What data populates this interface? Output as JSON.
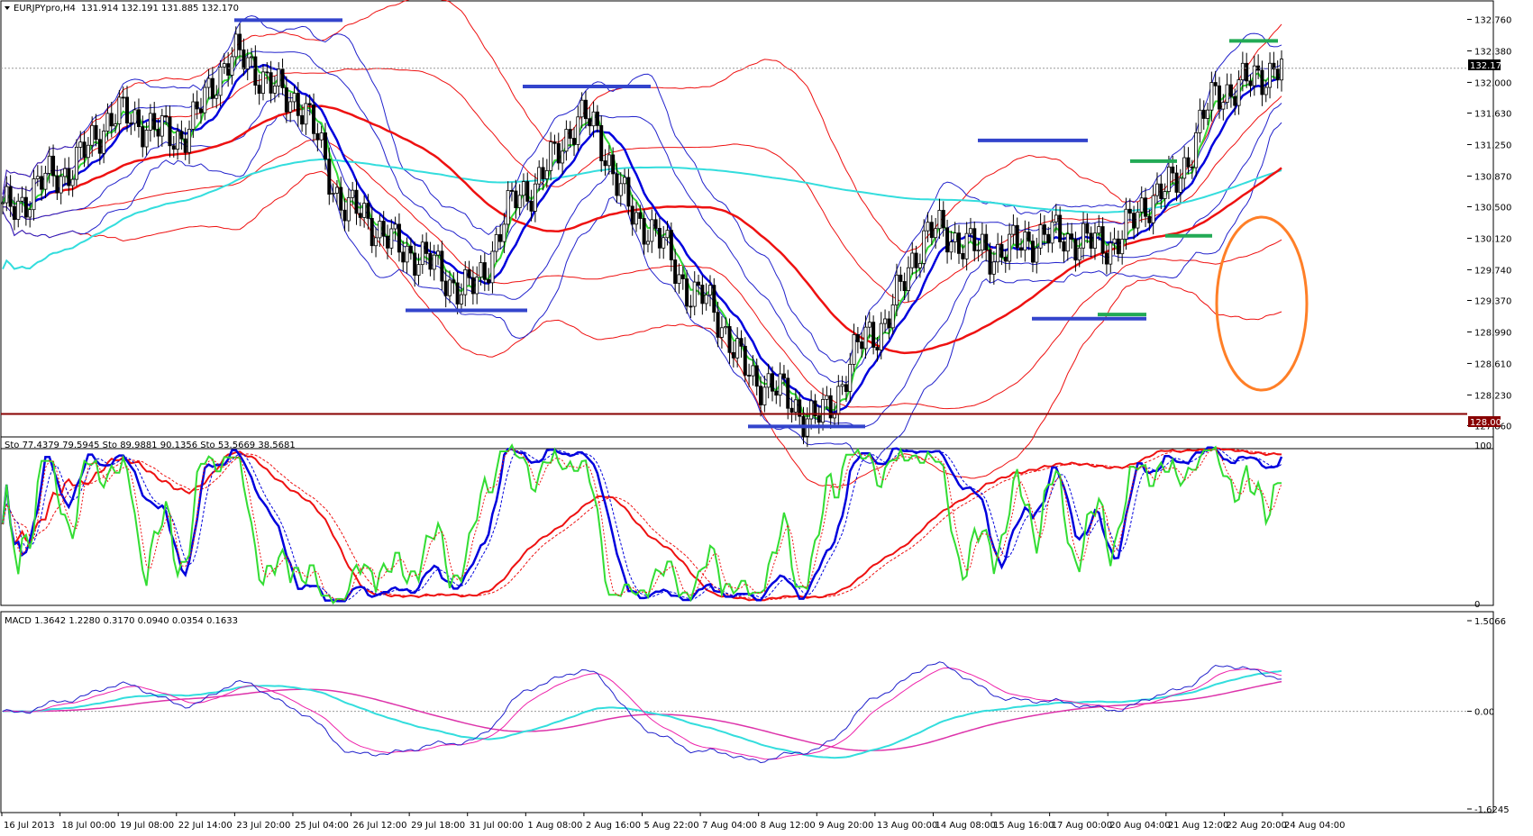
{
  "window": {
    "title": "EURJPYpro,H4",
    "quote": "131.914 132.191 131.885 132.170",
    "last_price_label": "132.170",
    "hline_label": "128.001"
  },
  "colors": {
    "background": "#ffffff",
    "bull_candle": "#ffffff",
    "bear_candle": "#000000",
    "ma_green": "#33dd33",
    "ma_blue": "#0000dd",
    "ma_red_thick": "#ee1111",
    "ma_cyan": "#33dddd",
    "bands_red": "#ee1111",
    "bands_blue": "#2222cc",
    "support_hline": "#880000",
    "swing_blue_marks": "#3344cc",
    "swing_green_marks": "#22aa55",
    "highlight_ellipse": "#ff7f27",
    "stoch_fast": "#33dd33",
    "stoch_mid": "#0000dd",
    "stoch_slow": "#ee1111",
    "macd_main_a": "#2222cc",
    "macd_signal_a": "#ee22aa",
    "macd_main_b": "#33dddd",
    "macd_signal_b": "#dd33aa"
  },
  "chart_data": [
    {
      "type": "candlestick",
      "panel": "price",
      "title": "EURJPYpro,H4",
      "symbol": "EURJPYpro",
      "timeframe": "H4",
      "ohlc_last": {
        "open": 131.914,
        "high": 132.191,
        "low": 131.885,
        "close": 132.17
      },
      "ylim": [
        127.8,
        132.95
      ],
      "y_ticks": [
        "132.760",
        "132.380",
        "132.000",
        "131.630",
        "131.250",
        "130.870",
        "130.500",
        "130.120",
        "129.740",
        "129.370",
        "128.990",
        "128.610",
        "128.230",
        "127.860"
      ],
      "x_tick_labels": [
        "16 Jul 2013",
        "18 Jul 00:00",
        "19 Jul 08:00",
        "22 Jul 14:00",
        "23 Jul 20:00",
        "25 Jul 04:00",
        "26 Jul 12:00",
        "29 Jul 18:00",
        "31 Jul 00:00",
        "1 Aug 08:00",
        "2 Aug 16:00",
        "5 Aug 22:00",
        "7 Aug 04:00",
        "8 Aug 12:00",
        "9 Aug 20:00",
        "13 Aug 00:00",
        "14 Aug 08:00",
        "15 Aug 16:00",
        "17 Aug 00:00",
        "20 Aug 04:00",
        "21 Aug 12:00",
        "22 Aug 20:00",
        "24 Aug 04:00"
      ],
      "close_path_keypoints": [
        {
          "x": "16 Jul 2013",
          "close": 130.45
        },
        {
          "x": "18 Jul 00:00",
          "close": 130.9
        },
        {
          "x": "19 Jul 08:00",
          "close": 131.6
        },
        {
          "x": "22 Jul 14:00",
          "close": 131.35
        },
        {
          "x": "23 Jul 20:00",
          "close": 132.3
        },
        {
          "x": "25 Jul 04:00",
          "close": 131.8
        },
        {
          "x": "26 Jul 12:00",
          "close": 130.45
        },
        {
          "x": "29 Jul 18:00",
          "close": 129.95
        },
        {
          "x": "31 Jul 00:00",
          "close": 129.5
        },
        {
          "x": "1 Aug 08:00",
          "close": 130.7
        },
        {
          "x": "2 Aug 16:00",
          "close": 131.55
        },
        {
          "x": "5 Aug 22:00",
          "close": 130.3
        },
        {
          "x": "7 Aug 04:00",
          "close": 129.4
        },
        {
          "x": "8 Aug 12:00",
          "close": 128.4
        },
        {
          "x": "9 Aug 20:00",
          "close": 127.95
        },
        {
          "x": "13 Aug 00:00",
          "close": 129.0
        },
        {
          "x": "14 Aug 08:00",
          "close": 130.2
        },
        {
          "x": "15 Aug 16:00",
          "close": 129.95
        },
        {
          "x": "17 Aug 00:00",
          "close": 130.15
        },
        {
          "x": "20 Aug 04:00",
          "close": 130.05
        },
        {
          "x": "21 Aug 12:00",
          "close": 130.7
        },
        {
          "x": "22 Aug 20:00",
          "close": 131.9
        },
        {
          "x": "24 Aug 04:00",
          "close": 132.17
        }
      ],
      "horizontal_line": 128.001,
      "last_price_line": 132.17
    },
    {
      "type": "line",
      "panel": "stochastic",
      "label": "Sto 77.4379 79.5945   Sto 89.9881 90.1356   Sto 53.5669 38.5681",
      "ylim": [
        0,
        100
      ],
      "y_ticks": [
        "100",
        "0"
      ],
      "series": [
        {
          "values_main": [
            77.4379
          ],
          "values_signal": [
            79.5945
          ]
        },
        {
          "values_main": [
            89.9881
          ],
          "values_signal": [
            90.1356
          ]
        },
        {
          "values_main": [
            53.5669
          ],
          "values_signal": [
            38.5681
          ]
        }
      ]
    },
    {
      "type": "line",
      "panel": "macd",
      "label": "MACD 1.3642 1.2280 0.3170 0.0940 0.0354 0.1633",
      "ylim": [
        -1.6245,
        1.5066
      ],
      "y_ticks": [
        "1.5066",
        "0.00",
        "-1.6245"
      ],
      "values": [
        1.3642,
        1.228,
        0.317,
        0.094,
        0.0354,
        0.1633
      ]
    }
  ]
}
